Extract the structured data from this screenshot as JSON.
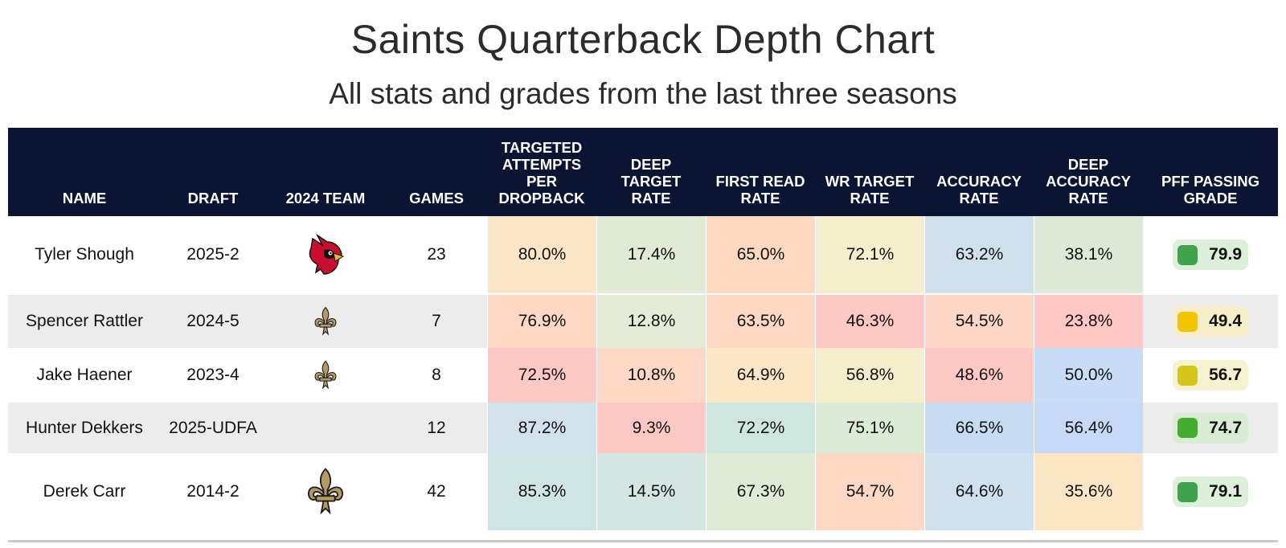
{
  "title": "Saints Quarterback Depth Chart",
  "subtitle": "All stats and grades from the last three seasons",
  "chart_data": {
    "type": "table",
    "title": "Saints Quarterback Depth Chart",
    "subtitle": "All stats and grades from the last three seasons",
    "columns": [
      {
        "key": "name",
        "label": "NAME"
      },
      {
        "key": "draft",
        "label": "DRAFT"
      },
      {
        "key": "team",
        "label": "2024 TEAM"
      },
      {
        "key": "games",
        "label": "GAMES"
      },
      {
        "key": "tapd",
        "label": "TARGETED\nATTEMPTS\nPER\nDROPBACK"
      },
      {
        "key": "dtr",
        "label": "DEEP\nTARGET\nRATE"
      },
      {
        "key": "frr",
        "label": "FIRST READ\nRATE"
      },
      {
        "key": "wrtr",
        "label": "WR TARGET\nRATE"
      },
      {
        "key": "acc",
        "label": "ACCURACY\nRATE"
      },
      {
        "key": "dacc",
        "label": "DEEP\nACCURACY\nRATE"
      },
      {
        "key": "grade",
        "label": "PFF PASSING\nGRADE"
      }
    ],
    "rows": [
      {
        "name": "Tyler Shough",
        "draft": "2025-2",
        "team_logo": "cardinal-logo-icon",
        "games": "23",
        "stats": [
          "80.0%",
          "17.4%",
          "65.0%",
          "72.1%",
          "63.2%",
          "38.1%"
        ],
        "stat_colors": [
          "#fde5c8",
          "#e1ead4",
          "#fdd9c2",
          "#f6efcd",
          "#cfe0ed",
          "#dde9d6"
        ],
        "grade": "79.9",
        "grade_dot": "#3fa34d",
        "grade_bg": "#dcefd9"
      },
      {
        "name": "Spencer Rattler",
        "draft": "2024-5",
        "team_logo": "fleur-de-lis-icon",
        "games": "7",
        "stats": [
          "76.9%",
          "12.8%",
          "63.5%",
          "46.3%",
          "54.5%",
          "23.8%"
        ],
        "stat_colors": [
          "#fdd8c4",
          "#e4ebd6",
          "#fdd9c4",
          "#fec8c4",
          "#fdd7c6",
          "#fec7c3"
        ],
        "grade": "49.4",
        "grade_dot": "#f5c400",
        "grade_bg": "#f7edc6"
      },
      {
        "name": "Jake Haener",
        "draft": "2023-4",
        "team_logo": "fleur-de-lis-icon",
        "games": "8",
        "stats": [
          "72.5%",
          "10.8%",
          "64.9%",
          "56.8%",
          "48.6%",
          "50.0%"
        ],
        "stat_colors": [
          "#fec9c4",
          "#fdd9c5",
          "#fde6c6",
          "#f5eecd",
          "#fec8c4",
          "#c9dcf7"
        ],
        "grade": "56.7",
        "grade_dot": "#d6c61c",
        "grade_bg": "#f5f3cf"
      },
      {
        "name": "Hunter Dekkers",
        "draft": "2025-UDFA",
        "team_logo": "",
        "games": "12",
        "stats": [
          "87.2%",
          "9.3%",
          "72.2%",
          "75.1%",
          "66.5%",
          "56.4%"
        ],
        "stat_colors": [
          "#d2e2ed",
          "#fec8c4",
          "#cfe6df",
          "#dcebd6",
          "#c7dbf3",
          "#c6daf7"
        ],
        "grade": "74.7",
        "grade_dot": "#42ad2f",
        "grade_bg": "#d7ecd2"
      },
      {
        "name": "Derek Carr",
        "draft": "2014-2",
        "team_logo": "fleur-de-lis-icon",
        "games": "42",
        "stats": [
          "85.3%",
          "14.5%",
          "67.3%",
          "54.7%",
          "64.6%",
          "35.6%"
        ],
        "stat_colors": [
          "#cfe5e4",
          "#d4e6e2",
          "#e0ebd6",
          "#fdd9c5",
          "#cfe0ee",
          "#fde6c6"
        ],
        "grade": "79.1",
        "grade_dot": "#3fa34d",
        "grade_bg": "#dcefd9"
      }
    ]
  }
}
